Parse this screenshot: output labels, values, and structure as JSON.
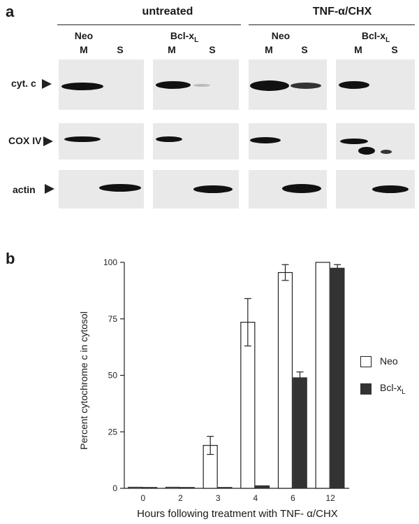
{
  "panel_a": {
    "letter": "a",
    "groups": [
      "untreated",
      "TNF-α/CHX"
    ],
    "conditions": [
      {
        "name": "Neo",
        "sub": ""
      },
      {
        "name": "Bcl-x",
        "sub": "L"
      },
      {
        "name": "Neo",
        "sub": ""
      },
      {
        "name": "Bcl-x",
        "sub": "L"
      }
    ],
    "lanes": [
      "M",
      "S"
    ],
    "rows": [
      "cyt. c",
      "COX IV",
      "actin"
    ]
  },
  "panel_b": {
    "letter": "b"
  },
  "chart_data": {
    "type": "bar",
    "categories": [
      "0",
      "2",
      "3",
      "4",
      "6",
      "12"
    ],
    "series": [
      {
        "name": "Neo",
        "values": [
          0,
          0,
          19,
          73.5,
          95.5,
          100
        ],
        "error_hi": [
          0,
          0,
          4,
          10.5,
          3.5,
          0
        ],
        "error_lo": [
          0,
          0,
          4,
          10.5,
          3.5,
          0
        ],
        "color": "#ffffff"
      },
      {
        "name": "Bcl-x",
        "name_sub": "L",
        "values": [
          0,
          0,
          0,
          1.2,
          49,
          97.5
        ],
        "error_hi": [
          0,
          0,
          0,
          0,
          2.5,
          1.5
        ],
        "error_lo": [
          0,
          0,
          0,
          0,
          0,
          0
        ],
        "color": "#333333"
      }
    ],
    "yticks": [
      "0",
      "25",
      "50",
      "75",
      "100"
    ],
    "ylim": [
      0,
      100
    ],
    "xlabel": "Hours following treatment with TNF- α/CHX",
    "ylabel": "Percent cytochrome c in cytosol",
    "legend": "right"
  }
}
